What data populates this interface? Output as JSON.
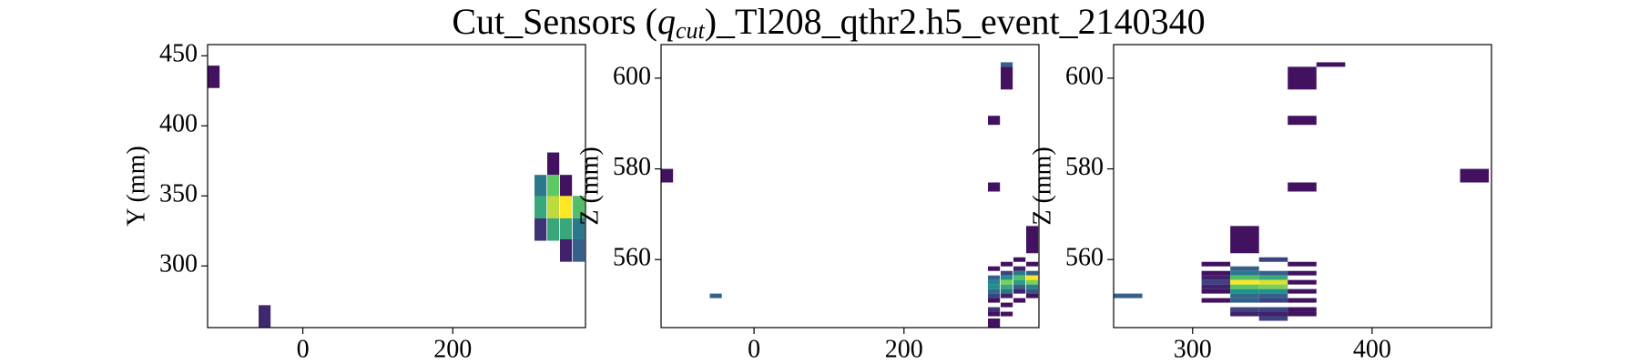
{
  "chart_data": [
    {
      "type": "heatmap",
      "colormap": "viridis",
      "ylabel": "Y (mm)",
      "xlim": [
        -127,
        377
      ],
      "ylim": [
        256,
        458
      ],
      "xticks": [
        0,
        200
      ],
      "yticks": [
        300,
        350,
        400,
        450
      ],
      "dx": 16,
      "dy": 16,
      "x": [
        -119,
        -51,
        317,
        317,
        317,
        334,
        334,
        334,
        334,
        351,
        351,
        351,
        351,
        368,
        368,
        368
      ],
      "y": [
        435,
        264,
        357,
        342,
        326,
        373,
        357,
        342,
        326,
        357,
        342,
        326,
        311,
        342,
        326,
        311
      ],
      "values": [
        0.05,
        0.12,
        0.4,
        0.6,
        0.15,
        0.05,
        0.75,
        0.9,
        0.6,
        0.05,
        1,
        0.6,
        0.1,
        0.7,
        0.4,
        0.3
      ]
    },
    {
      "type": "heatmap",
      "colormap": "viridis",
      "ylabel": "Z (mm)",
      "xlim": [
        -124,
        380
      ],
      "ylim": [
        545,
        607.4
      ],
      "xticks": [
        0,
        200
      ],
      "yticks": [
        560,
        580,
        600
      ],
      "dx": 16,
      "x": [
        -116,
        -51,
        337,
        337,
        320,
        320,
        371,
        320,
        320,
        320,
        320,
        320,
        320,
        320,
        320,
        320,
        320,
        337,
        337,
        337,
        337,
        337,
        337,
        337,
        337,
        337,
        354,
        354,
        354,
        354,
        354,
        354,
        354,
        354,
        371,
        371,
        371,
        371,
        371,
        371,
        371
      ],
      "y": [
        578.5,
        552,
        600,
        603,
        590.7,
        576,
        564.4,
        558,
        556,
        555,
        554,
        553,
        552,
        551,
        549,
        548,
        546,
        559,
        557,
        556,
        555,
        554,
        553,
        552,
        550,
        548,
        560,
        558,
        557,
        556,
        555,
        554,
        553,
        551,
        559,
        557,
        556,
        555,
        554,
        553,
        552
      ],
      "dy": [
        3,
        1,
        5,
        1,
        2,
        2,
        6,
        1,
        1,
        1,
        1,
        1,
        1,
        1,
        1,
        1,
        2,
        1,
        1,
        1,
        1,
        1,
        1,
        1,
        1,
        1,
        1,
        1,
        1,
        1,
        1,
        1,
        1,
        1,
        1,
        1,
        1,
        1,
        1,
        1,
        1
      ],
      "values": [
        0.05,
        0.3,
        0.05,
        0.3,
        0.05,
        0.05,
        0.05,
        0.05,
        0.3,
        0.45,
        0.5,
        0.35,
        0.2,
        0.05,
        0.15,
        0.05,
        0.05,
        0.05,
        0.2,
        0.5,
        0.8,
        0.6,
        0.4,
        0.1,
        0.05,
        0.05,
        0.05,
        0.1,
        0.4,
        0.7,
        0.55,
        0.3,
        0.1,
        0.05,
        0.05,
        0.3,
        1,
        0.8,
        0.45,
        0.25,
        0.05
      ]
    },
    {
      "type": "heatmap",
      "colormap": "viridis",
      "ylabel": "Z (mm)",
      "xlim": [
        256,
        466.5
      ],
      "ylim": [
        545,
        607.4
      ],
      "xticks": [
        300,
        400
      ],
      "yticks": [
        560,
        580,
        600
      ],
      "dx": 16,
      "x": [
        264,
        361,
        377,
        361,
        361,
        457,
        329,
        313,
        313,
        313,
        313,
        313,
        313,
        313,
        329,
        329,
        329,
        329,
        329,
        329,
        329,
        329,
        329,
        329,
        345,
        345,
        345,
        345,
        345,
        345,
        345,
        345,
        345,
        345,
        345,
        361,
        361,
        361,
        361,
        361,
        361,
        361
      ],
      "y": [
        552,
        600,
        603,
        590.7,
        576,
        578.5,
        564.4,
        559,
        557,
        556,
        555,
        554,
        553,
        551,
        558,
        557,
        556,
        555,
        554,
        553,
        552,
        551,
        549,
        548,
        560,
        557,
        556,
        555,
        554,
        553,
        552,
        551,
        549,
        548,
        547,
        559,
        557,
        555,
        553,
        551,
        549,
        548
      ],
      "dy": [
        1,
        5,
        1,
        2,
        2,
        3,
        6,
        1,
        1,
        1,
        1,
        1,
        1,
        1,
        1,
        1,
        1,
        1,
        1,
        1,
        1,
        1,
        1,
        1,
        1,
        1,
        1,
        1,
        1,
        1,
        1,
        1,
        1,
        1,
        1,
        1,
        1,
        1,
        1,
        1,
        1,
        1
      ],
      "values": [
        0.3,
        0.05,
        0.05,
        0.05,
        0.05,
        0.05,
        0.05,
        0.05,
        0.05,
        0.1,
        0.2,
        0.1,
        0.05,
        0.05,
        0.3,
        0.4,
        0.7,
        1,
        0.75,
        0.5,
        0.35,
        0.3,
        0.2,
        0.1,
        0.2,
        0.3,
        0.6,
        0.95,
        0.8,
        0.5,
        0.3,
        0.2,
        0.2,
        0.1,
        0.2,
        0.05,
        0.05,
        0.05,
        0.05,
        0.05,
        0.05,
        0.05
      ]
    }
  ],
  "title": {
    "prefix": "Cut_Sensors (",
    "symbol": "q",
    "subscript": "cut",
    "suffix": ")_Tl208_qthr2.h5_event_2140340"
  }
}
